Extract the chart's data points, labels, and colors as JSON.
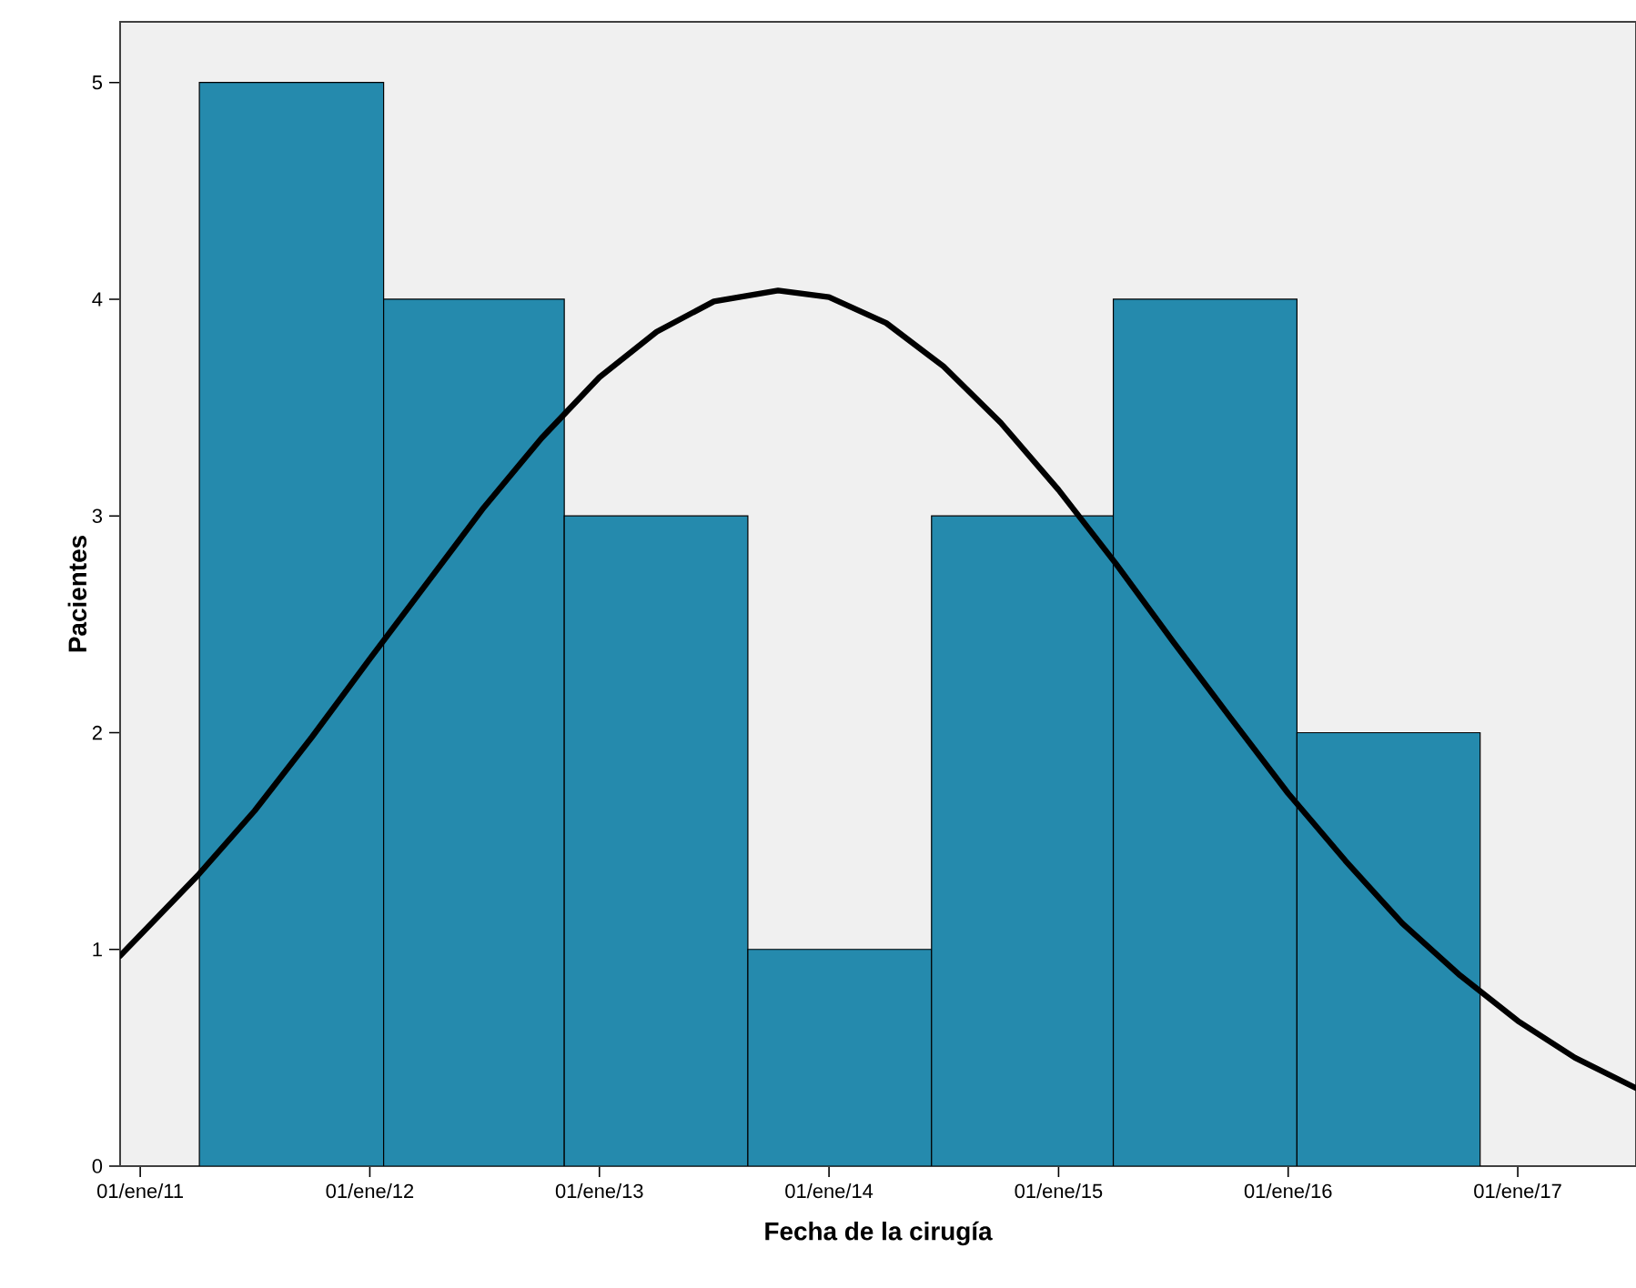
{
  "chart_data": {
    "type": "histogram",
    "xlabel": "Fecha de la cirugía",
    "ylabel": "Pacientes",
    "bins": [
      "2011-04-05",
      "2012-01-23",
      "2012-11-06",
      "2013-08-25",
      "2014-06-13",
      "2015-03-29",
      "2016-01-15",
      "2016-11-02"
    ],
    "values": [
      5,
      4,
      3,
      1,
      3,
      4,
      2
    ],
    "color": "#258aad",
    "series": [
      {
        "type": "line",
        "color": "#000000",
        "x": [
          "2010-11-30",
          "2011-04-02",
          "2011-07-02",
          "2011-10-01",
          "2012-01-01",
          "2012-04-01",
          "2012-07-01",
          "2012-10-01",
          "2013-01-01",
          "2013-04-02",
          "2013-07-02",
          "2013-10-12",
          "2014-01-01",
          "2014-04-02",
          "2014-07-02",
          "2014-10-01",
          "2015-01-01",
          "2015-04-02",
          "2015-07-02",
          "2015-10-01",
          "2016-01-01",
          "2016-04-01",
          "2016-07-01",
          "2016-10-01",
          "2017-01-01",
          "2017-04-02",
          "2017-07-08"
        ],
        "values": [
          0.97,
          1.34,
          1.64,
          1.98,
          2.34,
          2.69,
          3.04,
          3.36,
          3.64,
          3.85,
          3.99,
          4.04,
          4.01,
          3.89,
          3.69,
          3.43,
          3.12,
          2.78,
          2.42,
          2.07,
          1.72,
          1.41,
          1.12,
          0.88,
          0.67,
          0.5,
          0.36
        ]
      }
    ],
    "xlim": [
      "2010-11-30",
      "2017-07-08"
    ],
    "ylim": [
      0,
      5.28
    ],
    "xticks": [
      {
        "value": "2011-01-01",
        "label": "01/ene/11"
      },
      {
        "value": "2012-01-01",
        "label": "01/ene/12"
      },
      {
        "value": "2013-01-01",
        "label": "01/ene/13"
      },
      {
        "value": "2014-01-01",
        "label": "01/ene/14"
      },
      {
        "value": "2015-01-01",
        "label": "01/ene/15"
      },
      {
        "value": "2016-01-01",
        "label": "01/ene/16"
      },
      {
        "value": "2017-01-01",
        "label": "01/ene/17"
      }
    ],
    "yticks": [
      0,
      1,
      2,
      3,
      4,
      5
    ],
    "grid": false
  }
}
